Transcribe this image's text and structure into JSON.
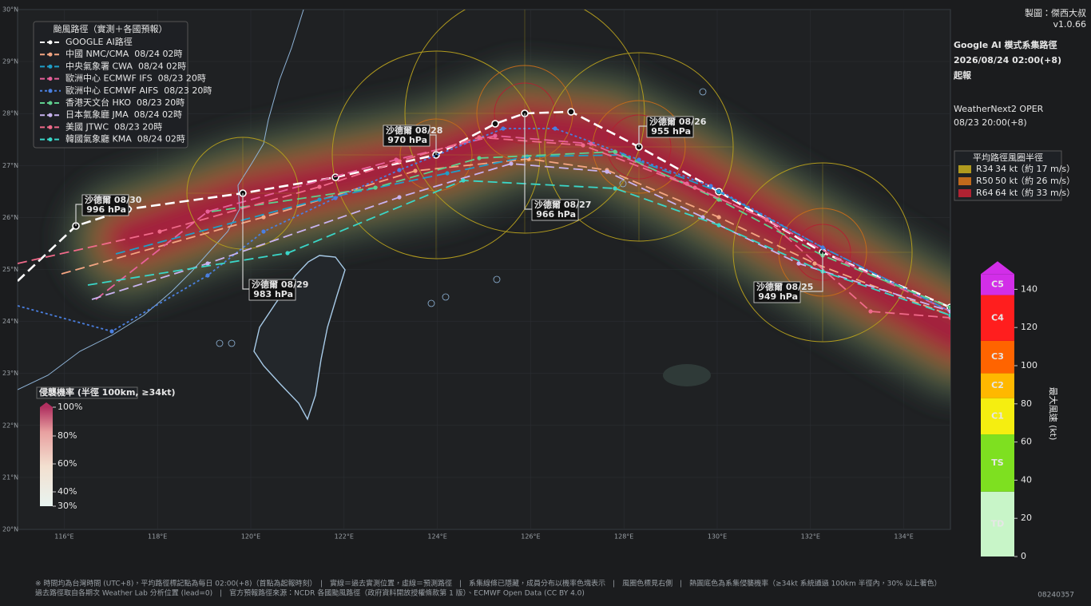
{
  "header": {
    "credit": "製圖：傑西大叔",
    "version": "v1.0.66",
    "title_lines": [
      "Google AI 模式系集路徑",
      "2026/08/24 02:00(+8)",
      "起報"
    ],
    "model_lines": [
      "WeatherNext2 OPER",
      "08/23 20:00(+8)"
    ]
  },
  "map": {
    "lat_labels": [
      "30°N",
      "29°N",
      "28°N",
      "27°N",
      "26°N",
      "25°N",
      "24°N",
      "23°N",
      "22°N",
      "21°N",
      "20°N"
    ],
    "lon_labels": [
      "116°E",
      "118°E",
      "120°E",
      "122°E",
      "124°E",
      "126°E",
      "128°E",
      "130°E",
      "132°E",
      "134°E"
    ]
  },
  "track_legend": {
    "title": "颱風路徑（實測＋各國預報）",
    "tracks": [
      {
        "label": "GOOGLE AI路徑",
        "color": "#ffffff"
      },
      {
        "label": "中國 NMC/CMA  08/24 02時",
        "color": "#f4a582"
      },
      {
        "label": "中央氣象署 CWA  08/24 02時",
        "color": "#1f9ec8"
      },
      {
        "label": "歐洲中心 ECMWF IFS  08/23 20時",
        "color": "#e8609a"
      },
      {
        "label": "歐洲中心 ECMWF AIFS  08/23 20時",
        "color": "#4a7fe0"
      },
      {
        "label": "香港天文台 HKO  08/23 20時",
        "color": "#5fcf8e"
      },
      {
        "label": "日本氣象廳 JMA  08/24 02時",
        "color": "#c9b3f0"
      },
      {
        "label": "美國 JTWC  08/23 20時",
        "color": "#f06a8a"
      },
      {
        "label": "韓國氣象廳 KMA  08/24 02時",
        "color": "#3ad6c8"
      }
    ]
  },
  "storm_labels": [
    {
      "name": "沙德爾 08/30",
      "pressure": "996 hPa"
    },
    {
      "name": "沙德爾 08/29",
      "pressure": "983 hPa"
    },
    {
      "name": "沙德爾 08/28",
      "pressure": "970 hPa"
    },
    {
      "name": "沙德爾 08/27",
      "pressure": "966 hPa"
    },
    {
      "name": "沙德爾 08/26",
      "pressure": "955 hPa"
    },
    {
      "name": "沙德爾 08/25",
      "pressure": "949 hPa"
    }
  ],
  "radius_legend": {
    "title": "平均路徑風圈半徑",
    "rows": [
      {
        "key": "R34",
        "speed": "34 kt",
        "note": "（約 17 m/s）",
        "color": "#b09a1e"
      },
      {
        "key": "R50",
        "speed": "50 kt",
        "note": "（約 26 m/s）",
        "color": "#c06a1c"
      },
      {
        "key": "R64",
        "speed": "64 kt",
        "note": "（約 33 m/s）",
        "color": "#b02232"
      }
    ]
  },
  "probability_legend": {
    "title": "侵襲機率 (半徑 100km, ≥34kt)",
    "ticks": [
      "100%",
      "80%",
      "60%",
      "40%",
      "30%"
    ]
  },
  "wind_scale": {
    "axis_label": "最大風速 (kt)",
    "categories": [
      "C5",
      "C4",
      "C3",
      "C2",
      "C1",
      "TS",
      "TD"
    ],
    "ticks": [
      0,
      20,
      40,
      60,
      80,
      100,
      120,
      140
    ]
  },
  "footer": {
    "lines": [
      "※ 時間均為台灣時間 (UTC+8)，平均路徑標記點為每日 02:00(+8)（首點為起報時刻）　|　實線＝過去實測位置，虛線＝預測路徑　|　系集線條已隱藏，成員分布以機率色塊表示　|　風圈色標見右側　|　熱圖底色為系集侵襲機率（≥34kt 系統通過 100km 半徑內，30% 以上著色）",
      "過去路徑取自各期次 Weather Lab 分析位置 (lead=0)　|　官方預報路徑來源：NCDR 各國颱風路徑（政府資料開放授權條款第 1 版）、ECMWF Open Data (CC BY 4.0)"
    ],
    "code": "08240357"
  }
}
